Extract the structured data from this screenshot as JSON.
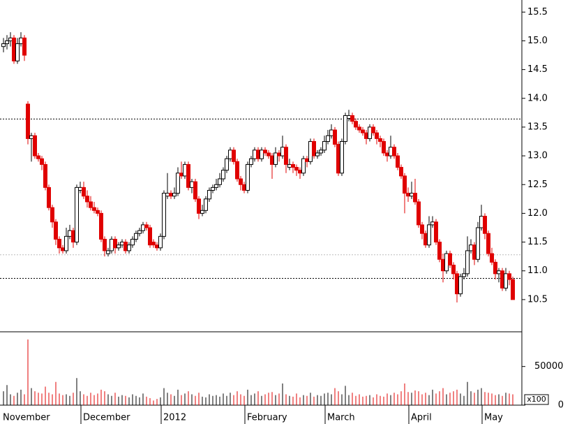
{
  "chart_data": {
    "type": "candlestick",
    "open": [
      14.9,
      14.95,
      15.0,
      15.05,
      14.65,
      14.95,
      15.05,
      13.9,
      13.3,
      13.35,
      13.0,
      12.95,
      12.85,
      12.45,
      12.1,
      11.85,
      11.55,
      11.4,
      11.35,
      11.6,
      11.7,
      11.5,
      12.4,
      12.45,
      12.3,
      12.2,
      12.1,
      12.05,
      12.0,
      11.55,
      11.3,
      11.35,
      11.55,
      11.4,
      11.45,
      11.5,
      11.35,
      11.45,
      11.55,
      11.65,
      11.7,
      11.8,
      11.75,
      11.5,
      11.45,
      11.4,
      11.6,
      12.3,
      12.35,
      12.3,
      12.35,
      12.7,
      12.65,
      12.85,
      12.45,
      12.55,
      12.25,
      12.0,
      12.05,
      12.25,
      12.4,
      12.45,
      12.5,
      12.6,
      12.75,
      12.95,
      13.1,
      12.9,
      12.6,
      12.5,
      12.4,
      12.85,
      12.95,
      13.1,
      12.95,
      13.1,
      13.05,
      13.0,
      12.85,
      13.05,
      13.0,
      13.15,
      12.8,
      12.85,
      12.8,
      12.75,
      12.7,
      12.95,
      12.9,
      13.25,
      13.0,
      13.05,
      13.1,
      13.25,
      13.35,
      13.45,
      13.2,
      12.7,
      13.25,
      13.65,
      13.7,
      13.6,
      13.5,
      13.45,
      13.4,
      13.3,
      13.5,
      13.4,
      13.3,
      13.25,
      13.05,
      13.0,
      13.15,
      13.0,
      12.8,
      12.65,
      12.35,
      12.3,
      12.35,
      12.2,
      11.8,
      11.65,
      11.45,
      11.8,
      11.85,
      11.5,
      11.2,
      11.0,
      11.3,
      11.1,
      10.95,
      10.6,
      10.9,
      10.95,
      11.35,
      11.45,
      11.2,
      11.75,
      11.95,
      11.65,
      11.3,
      11.15,
      10.95,
      11.0,
      10.7,
      10.95,
      10.85
    ],
    "high": [
      15.05,
      15.1,
      15.15,
      15.1,
      15.05,
      15.15,
      15.1,
      13.95,
      13.4,
      13.4,
      13.05,
      13.0,
      12.9,
      12.5,
      12.15,
      11.9,
      11.6,
      11.45,
      11.75,
      11.8,
      11.75,
      12.5,
      12.55,
      12.55,
      12.4,
      12.3,
      12.2,
      12.1,
      12.05,
      11.6,
      11.4,
      11.6,
      11.6,
      11.5,
      11.55,
      11.55,
      11.5,
      11.6,
      11.7,
      11.75,
      11.85,
      11.85,
      11.8,
      11.55,
      11.5,
      11.65,
      12.4,
      12.7,
      12.4,
      12.45,
      12.8,
      12.9,
      12.9,
      12.9,
      12.6,
      12.6,
      12.3,
      12.15,
      12.3,
      12.45,
      12.5,
      12.6,
      12.7,
      12.8,
      13.0,
      13.15,
      13.15,
      12.95,
      12.65,
      12.55,
      12.9,
      13.0,
      13.15,
      13.15,
      13.15,
      13.15,
      13.1,
      13.05,
      13.15,
      13.1,
      13.35,
      13.2,
      12.95,
      12.9,
      12.85,
      12.8,
      13.0,
      13.0,
      13.3,
      13.3,
      13.1,
      13.15,
      13.35,
      13.45,
      13.55,
      13.5,
      13.25,
      13.3,
      13.75,
      13.8,
      13.75,
      13.65,
      13.55,
      13.5,
      13.45,
      13.55,
      13.55,
      13.45,
      13.35,
      13.3,
      13.1,
      13.35,
      13.2,
      13.05,
      12.85,
      12.7,
      12.45,
      12.55,
      12.6,
      12.25,
      11.85,
      11.7,
      11.95,
      11.95,
      11.9,
      11.55,
      11.3,
      11.35,
      11.35,
      11.15,
      11.0,
      10.95,
      11.05,
      11.6,
      11.55,
      11.5,
      11.85,
      12.15,
      12.0,
      11.7,
      11.4,
      11.2,
      11.05,
      11.05,
      11.05,
      11.0,
      10.9
    ],
    "low": [
      14.8,
      14.85,
      14.9,
      14.6,
      14.6,
      14.9,
      14.65,
      13.2,
      12.9,
      12.95,
      12.9,
      12.75,
      12.4,
      12.05,
      11.75,
      11.45,
      11.3,
      11.3,
      11.3,
      11.55,
      11.4,
      11.45,
      12.35,
      12.25,
      12.1,
      12.05,
      12.0,
      11.95,
      11.5,
      11.25,
      11.25,
      11.3,
      11.3,
      11.35,
      11.4,
      11.3,
      11.3,
      11.4,
      11.5,
      11.6,
      11.65,
      11.7,
      11.4,
      11.4,
      11.35,
      11.35,
      11.55,
      12.25,
      12.25,
      12.25,
      12.3,
      12.6,
      12.6,
      12.4,
      12.35,
      12.2,
      11.9,
      11.95,
      12.0,
      12.2,
      12.35,
      12.4,
      12.45,
      12.55,
      12.7,
      12.9,
      12.85,
      12.55,
      12.4,
      12.35,
      12.35,
      12.8,
      12.9,
      12.9,
      12.9,
      13.0,
      12.95,
      12.6,
      12.8,
      12.9,
      12.95,
      12.7,
      12.75,
      12.7,
      12.65,
      12.6,
      12.65,
      12.8,
      12.85,
      12.95,
      12.95,
      13.0,
      13.05,
      13.2,
      13.3,
      13.15,
      12.65,
      12.65,
      13.2,
      13.6,
      13.55,
      13.45,
      13.4,
      13.35,
      13.2,
      13.25,
      13.35,
      13.2,
      13.15,
      13.0,
      12.9,
      12.95,
      12.95,
      12.75,
      12.6,
      12.0,
      12.2,
      12.25,
      12.15,
      11.75,
      11.55,
      11.4,
      11.4,
      11.75,
      11.45,
      11.15,
      10.8,
      10.95,
      11.05,
      10.85,
      10.45,
      10.55,
      10.85,
      10.9,
      11.3,
      11.1,
      11.15,
      11.7,
      11.55,
      11.25,
      11.1,
      10.85,
      10.8,
      10.65,
      10.65,
      10.75,
      10.5
    ],
    "close": [
      14.95,
      15.0,
      15.05,
      14.65,
      14.95,
      15.05,
      14.75,
      13.3,
      13.35,
      13.0,
      12.95,
      12.85,
      12.45,
      12.1,
      11.85,
      11.55,
      11.4,
      11.35,
      11.6,
      11.7,
      11.5,
      12.45,
      12.45,
      12.3,
      12.2,
      12.1,
      12.05,
      12.0,
      11.55,
      11.35,
      11.35,
      11.55,
      11.4,
      11.45,
      11.5,
      11.35,
      11.45,
      11.55,
      11.65,
      11.7,
      11.8,
      11.75,
      11.45,
      11.45,
      11.4,
      11.6,
      12.35,
      12.35,
      12.3,
      12.35,
      12.7,
      12.65,
      12.85,
      12.45,
      12.55,
      12.25,
      12.0,
      12.05,
      12.25,
      12.4,
      12.45,
      12.5,
      12.6,
      12.75,
      12.95,
      13.1,
      12.9,
      12.6,
      12.5,
      12.4,
      12.85,
      12.95,
      13.1,
      12.95,
      13.1,
      13.05,
      13.0,
      12.85,
      13.05,
      13.0,
      13.15,
      12.85,
      12.85,
      12.8,
      12.75,
      12.7,
      12.95,
      12.9,
      13.25,
      13.0,
      13.05,
      13.1,
      13.25,
      13.35,
      13.45,
      13.2,
      12.7,
      13.25,
      13.7,
      13.7,
      13.6,
      13.5,
      13.45,
      13.4,
      13.3,
      13.5,
      13.4,
      13.3,
      13.25,
      13.05,
      13.0,
      13.15,
      13.0,
      12.8,
      12.65,
      12.35,
      12.3,
      12.35,
      12.2,
      11.8,
      11.65,
      11.45,
      11.8,
      11.85,
      11.5,
      11.2,
      11.0,
      11.3,
      11.1,
      10.95,
      10.6,
      10.9,
      10.95,
      11.35,
      11.45,
      11.2,
      11.75,
      11.95,
      11.65,
      11.3,
      11.15,
      10.95,
      11.0,
      10.7,
      10.95,
      10.85,
      10.5
    ],
    "volume": [
      18000,
      26000,
      14000,
      12000,
      16000,
      20000,
      14000,
      85000,
      22000,
      18000,
      16000,
      15000,
      24000,
      16000,
      14000,
      30000,
      15000,
      13000,
      14000,
      12000,
      16000,
      35000,
      18000,
      14000,
      12000,
      16000,
      13000,
      15000,
      20000,
      18000,
      14000,
      12000,
      16000,
      11000,
      13000,
      12000,
      10000,
      14000,
      12000,
      10000,
      15000,
      11000,
      9000,
      6000,
      8000,
      10000,
      22000,
      16000,
      14000,
      12000,
      20000,
      13000,
      15000,
      18000,
      14000,
      12000,
      16000,
      11000,
      10000,
      14000,
      12000,
      13000,
      11000,
      15000,
      12000,
      16000,
      13000,
      18000,
      14000,
      12000,
      20000,
      13000,
      15000,
      18000,
      12000,
      14000,
      16000,
      17000,
      13000,
      15000,
      28000,
      14000,
      12000,
      11000,
      15000,
      10000,
      13000,
      12000,
      16000,
      11000,
      13000,
      12000,
      15000,
      16000,
      14000,
      22000,
      18000,
      14000,
      25000,
      13000,
      16000,
      12000,
      14000,
      11000,
      12000,
      13000,
      10000,
      14000,
      12000,
      11000,
      15000,
      13000,
      16000,
      14000,
      18000,
      28000,
      17000,
      16000,
      19000,
      18000,
      14000,
      16000,
      13000,
      20000,
      15000,
      18000,
      22000,
      14000,
      16000,
      18000,
      20000,
      15000,
      12000,
      30000,
      18000,
      16000,
      20000,
      22000,
      17000,
      16000,
      15000,
      13000,
      14000,
      12000,
      16000,
      15000,
      14000
    ],
    "up_color": "#ffffff",
    "down_color": "#e00000",
    "x_labels": [
      {
        "index": 0,
        "label": "November"
      },
      {
        "index": 23,
        "label": "December"
      },
      {
        "index": 46,
        "label": "2012"
      },
      {
        "index": 70,
        "label": "February"
      },
      {
        "index": 93,
        "label": "March"
      },
      {
        "index": 117,
        "label": "April"
      },
      {
        "index": 138,
        "label": "May"
      }
    ],
    "ylim": [
      9.94,
      15.71
    ],
    "yticks": [
      {
        "value": 10.5,
        "label": "10.5"
      },
      {
        "value": 11,
        "label": "11.0"
      },
      11.5,
      {
        "value": 12,
        "label": "12.0"
      },
      12.5,
      {
        "value": 13,
        "label": "13.0"
      },
      13.5,
      {
        "value": 14,
        "label": "14.0"
      },
      14.5,
      {
        "value": 15,
        "label": "15.0"
      },
      15.5
    ],
    "hlines": [
      {
        "value": 13.64,
        "color": "#000000"
      },
      {
        "value": 11.28,
        "color": "#bbbbbb"
      },
      {
        "value": 10.87,
        "color": "#000000"
      }
    ],
    "volume_ylim": [
      0,
      94000
    ],
    "volume_yticks": [
      0,
      50000
    ],
    "volume_unit_label": "x100"
  }
}
